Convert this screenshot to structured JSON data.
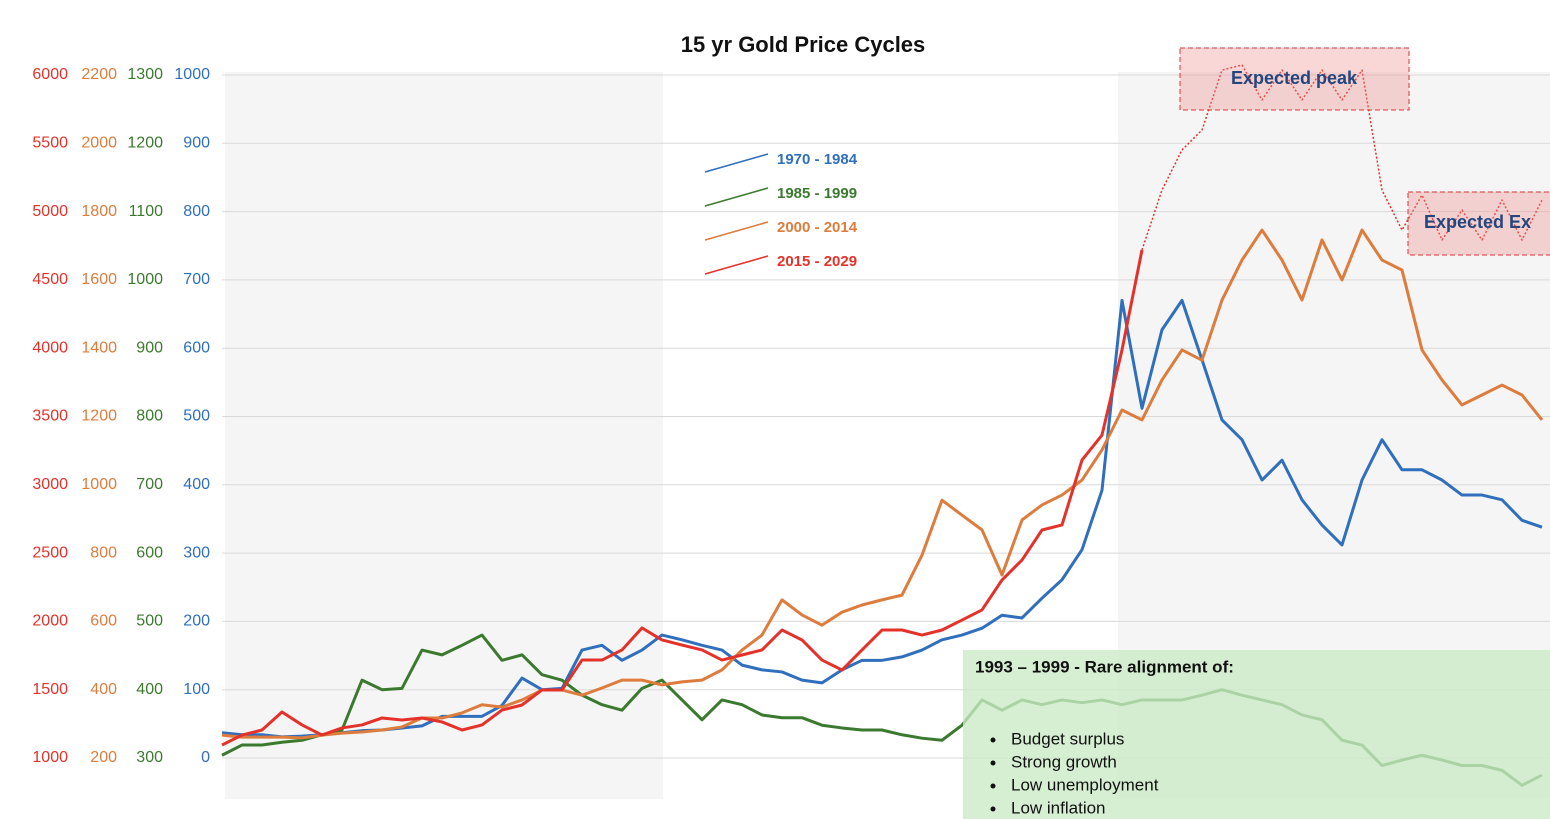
{
  "chart_data": {
    "type": "line",
    "title": "15 yr  Gold Price Cycles",
    "categories": [
      null,
      null,
      null,
      null,
      null,
      null,
      null,
      null,
      null,
      null,
      null,
      null,
      null,
      null,
      null,
      null,
      null,
      null,
      null,
      null,
      null,
      null,
      null,
      null,
      null,
      null,
      null,
      null,
      null,
      null,
      null,
      null,
      null,
      null,
      null,
      null,
      null,
      null,
      null,
      null,
      null,
      null,
      null,
      null,
      null,
      null,
      null,
      null,
      null,
      null,
      null,
      null,
      null,
      null,
      null,
      null,
      null,
      null,
      null,
      null,
      null,
      null,
      null,
      null,
      null,
      null,
      null
    ],
    "axes": [
      {
        "color": "#e4322b",
        "ylim": [
          1000,
          6000
        ],
        "yticks": [
          1000,
          1500,
          2000,
          2500,
          3000,
          3500,
          4000,
          4500,
          5000,
          5500,
          6000
        ]
      },
      {
        "color": "#dd7c3c",
        "ylim": [
          200,
          2200
        ],
        "yticks": [
          200,
          400,
          600,
          800,
          1000,
          1200,
          1400,
          1600,
          1800,
          2000,
          2200
        ]
      },
      {
        "color": "#3b7a2e",
        "ylim": [
          300,
          1300
        ],
        "yticks": [
          300,
          400,
          500,
          600,
          700,
          800,
          900,
          1000,
          1100,
          1200,
          1300
        ]
      },
      {
        "color": "#2f6fbd",
        "ylim": [
          0,
          1000
        ],
        "yticks": [
          0,
          100,
          200,
          300,
          400,
          500,
          600,
          700,
          800,
          900,
          1000
        ]
      }
    ],
    "grid": true,
    "series": [
      {
        "name": "1970 - 1984",
        "color": "#2f6fbd",
        "axis": 3,
        "values": [
          37,
          34,
          34,
          31,
          32,
          34,
          37,
          40,
          41,
          44,
          47,
          61,
          61,
          61,
          77,
          117,
          100,
          102,
          158,
          165,
          143,
          158,
          180,
          173,
          165,
          158,
          136,
          129,
          126,
          114,
          110,
          129,
          143,
          143,
          148,
          158,
          173,
          180,
          190,
          209,
          205,
          234,
          261,
          305,
          392,
          670,
          512,
          627,
          670,
          583,
          495,
          466,
          407,
          436,
          378,
          341,
          312,
          407,
          466,
          422,
          422,
          407,
          385,
          385,
          378,
          348,
          338
        ]
      },
      {
        "name": "1985 - 1999",
        "color": "#3b7a2e",
        "axis": 2,
        "values": [
          304,
          319,
          319,
          323,
          326,
          334,
          341,
          414,
          400,
          402,
          458,
          451,
          465,
          480,
          443,
          451,
          422,
          414,
          392,
          378,
          370,
          402,
          414,
          385,
          356,
          385,
          378,
          363,
          359,
          359,
          348,
          344,
          341,
          341,
          334,
          329,
          326,
          348,
          385,
          370,
          385,
          378,
          385,
          381,
          385,
          378,
          385,
          385,
          385,
          392,
          400,
          392,
          385,
          378,
          363,
          356,
          326,
          319,
          289,
          297,
          304,
          297,
          289,
          289,
          282,
          260,
          275
        ]
      },
      {
        "name": "2000 - 2014",
        "color": "#dd7c3c",
        "axis": 1,
        "values": [
          267,
          261,
          261,
          261,
          259,
          267,
          273,
          276,
          282,
          291,
          317,
          317,
          332,
          356,
          349,
          370,
          399,
          399,
          384,
          405,
          428,
          428,
          414,
          423,
          428,
          458,
          516,
          560,
          663,
          619,
          589,
          627,
          648,
          663,
          677,
          794,
          955,
          911,
          868,
          736,
          897,
          941,
          970,
          1014,
          1102,
          1219,
          1190,
          1307,
          1395,
          1365,
          1541,
          1658,
          1746,
          1658,
          1541,
          1717,
          1600,
          1746,
          1658,
          1629,
          1395,
          1307,
          1234,
          1263,
          1292,
          1263,
          1190
        ]
      },
      {
        "name": "2015 - 2029",
        "color": "#e4322b",
        "axis": 0,
        "values": [
          1095,
          1168,
          1205,
          1337,
          1242,
          1168,
          1220,
          1242,
          1293,
          1278,
          1293,
          1264,
          1205,
          1242,
          1351,
          1388,
          1498,
          1498,
          1717,
          1717,
          1791,
          1952,
          1864,
          1827,
          1791,
          1717,
          1754,
          1791,
          1937,
          1864,
          1717,
          1644,
          1791,
          1937,
          1937,
          1900,
          1937,
          2010,
          2084,
          2303,
          2449,
          2669,
          2706,
          3181,
          3364,
          3987,
          4719,
          null,
          null,
          null,
          null,
          null,
          null,
          null,
          null,
          null,
          null,
          null,
          null,
          null,
          null,
          null,
          null,
          null,
          null,
          null,
          null
        ]
      },
      {
        "color": "#e4322b",
        "axis": 0,
        "style": "dotted",
        "values": [
          null,
          null,
          null,
          null,
          null,
          null,
          null,
          null,
          null,
          null,
          null,
          null,
          null,
          null,
          null,
          null,
          null,
          null,
          null,
          null,
          null,
          null,
          null,
          null,
          null,
          null,
          null,
          null,
          null,
          null,
          null,
          null,
          null,
          null,
          null,
          null,
          null,
          null,
          null,
          null,
          null,
          null,
          null,
          null,
          null,
          null,
          4719,
          5158,
          5451,
          5597,
          6036,
          6073,
          5817,
          6036,
          5817,
          6036,
          5817,
          6036,
          5158,
          4865,
          5121,
          4792,
          5011,
          4792,
          5085,
          4792,
          5085
        ]
      }
    ],
    "annotations": [
      "Expected peak",
      "Expected Ex"
    ],
    "note_box": {
      "title": "1993 – 1999 - Rare alignment of:",
      "items": [
        "Budget surplus",
        "Strong growth",
        "Low unemployment",
        "Low inflation"
      ]
    }
  }
}
